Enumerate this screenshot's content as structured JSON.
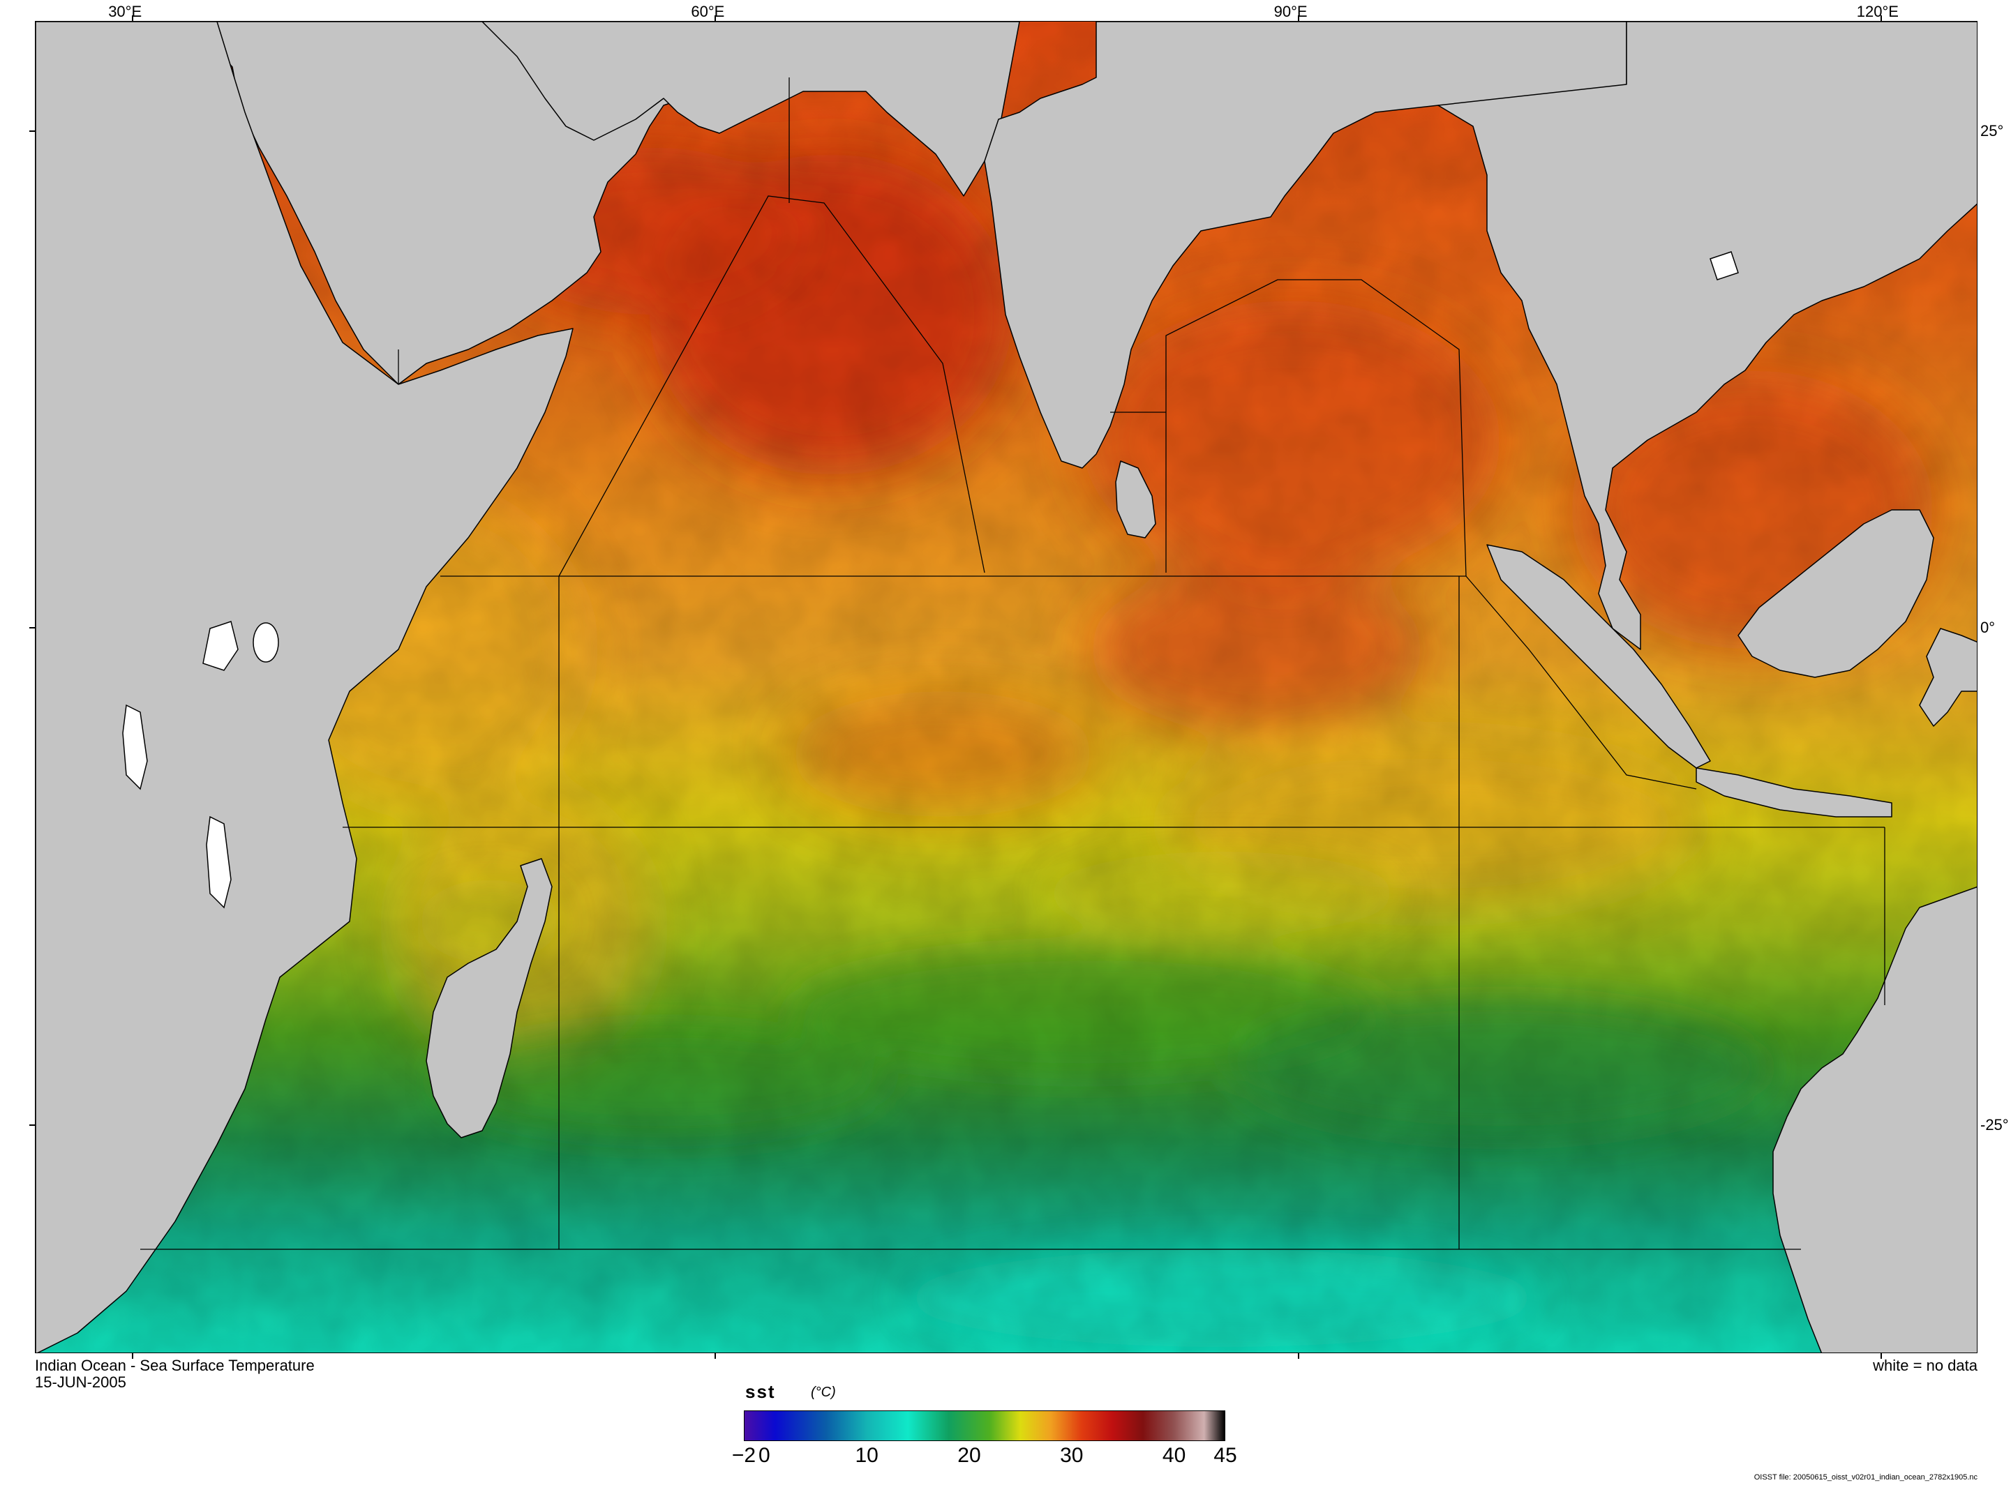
{
  "map": {
    "title_line1": "Indian Ocean - Sea Surface Temperature",
    "title_line2": "15-JUN-2005",
    "no_data_note": "white = no data",
    "file_note": "OISST file: 20050615_oisst_v02r01_indian_ocean_2782x1905.nc",
    "lon_ticks": [
      {
        "label": "30°E",
        "lon": 30
      },
      {
        "label": "60°E",
        "lon": 60
      },
      {
        "label": "90°E",
        "lon": 90
      },
      {
        "label": "120°E",
        "lon": 120
      }
    ],
    "lat_ticks": [
      {
        "label": "25°",
        "lat": 25
      },
      {
        "label": "0°",
        "lat": 0
      },
      {
        "label": "-25°",
        "lat": -25
      }
    ],
    "extent": {
      "lon_min": 25,
      "lon_max": 125,
      "lat_min": -36.5,
      "lat_max": 30.5
    },
    "colors": {
      "land": "#c4c4c4",
      "no_data": "#ffffff",
      "coast": "#000000"
    }
  },
  "colorbar": {
    "variable": "sst",
    "unit": "(°C)",
    "min": -2,
    "max": 45,
    "ticks": [
      {
        "label": "−2",
        "value": -2
      },
      {
        "label": "0",
        "value": 0
      },
      {
        "label": "10",
        "value": 10
      },
      {
        "label": "20",
        "value": 20
      },
      {
        "label": "30",
        "value": 30
      },
      {
        "label": "40",
        "value": 40
      },
      {
        "label": "45",
        "value": 45
      }
    ],
    "stops": [
      {
        "value": -2,
        "color": "#4a0ea8"
      },
      {
        "value": 1,
        "color": "#0a0ad0"
      },
      {
        "value": 6,
        "color": "#0a5ea8"
      },
      {
        "value": 10,
        "color": "#14b4b4"
      },
      {
        "value": 14,
        "color": "#10e8c8"
      },
      {
        "value": 18,
        "color": "#10a060"
      },
      {
        "value": 22,
        "color": "#50b020"
      },
      {
        "value": 25,
        "color": "#dcdc10"
      },
      {
        "value": 28,
        "color": "#f0a020"
      },
      {
        "value": 31,
        "color": "#e03c10"
      },
      {
        "value": 34,
        "color": "#c01010"
      },
      {
        "value": 37,
        "color": "#801010"
      },
      {
        "value": 40,
        "color": "#905050"
      },
      {
        "value": 43,
        "color": "#d0b0b0"
      },
      {
        "value": 45,
        "color": "#000000"
      }
    ]
  }
}
